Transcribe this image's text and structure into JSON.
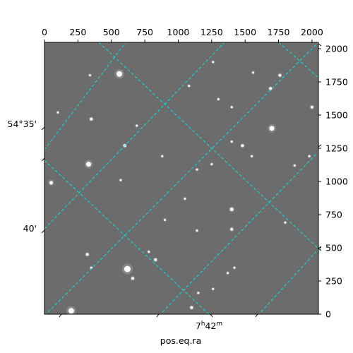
{
  "chart_data": {
    "type": "image",
    "subtype": "astronomical-image-with-wcs-grid",
    "image_colormap": "gray",
    "grid_color": "#00e5e5",
    "grid_linestyle": "dashed",
    "top_axis": {
      "ticks": [
        0,
        250,
        500,
        750,
        1000,
        1250,
        1500,
        1750,
        2000
      ],
      "tick_labels": [
        "0",
        "250",
        "500",
        "750",
        "1000",
        "1250",
        "1500",
        "1750",
        "2000"
      ],
      "xlim": [
        0,
        2048
      ]
    },
    "right_axis": {
      "ticks": [
        0,
        250,
        500,
        750,
        1000,
        1250,
        1500,
        1750,
        2000
      ],
      "tick_labels": [
        "0",
        "250",
        "500",
        "750",
        "1000",
        "1250",
        "1500",
        "1750",
        "2000"
      ],
      "ylim": [
        0,
        2048
      ]
    },
    "left_axis": {
      "tick_labels": [
        "54°35'",
        "40'"
      ]
    },
    "bottom_axis": {
      "tick_labels": [
        "7h42m"
      ],
      "label": "pos.eq.ra"
    },
    "stars": [
      {
        "x": 560,
        "y": 1810,
        "size": 4
      },
      {
        "x": 350,
        "y": 1470,
        "size": 2
      },
      {
        "x": 330,
        "y": 1130,
        "size": 3.5
      },
      {
        "x": 50,
        "y": 990,
        "size": 2.5
      },
      {
        "x": 600,
        "y": 1270,
        "size": 2
      },
      {
        "x": 690,
        "y": 1420,
        "size": 1.5
      },
      {
        "x": 570,
        "y": 1010,
        "size": 1.5
      },
      {
        "x": 1700,
        "y": 1400,
        "size": 3.5
      },
      {
        "x": 1690,
        "y": 1700,
        "size": 2
      },
      {
        "x": 1760,
        "y": 1800,
        "size": 2
      },
      {
        "x": 1480,
        "y": 1270,
        "size": 2
      },
      {
        "x": 1400,
        "y": 1300,
        "size": 1.5
      },
      {
        "x": 1400,
        "y": 1560,
        "size": 1.5
      },
      {
        "x": 1250,
        "y": 1130,
        "size": 1.5
      },
      {
        "x": 1140,
        "y": 1090,
        "size": 1.5
      },
      {
        "x": 1400,
        "y": 790,
        "size": 2.5
      },
      {
        "x": 1400,
        "y": 640,
        "size": 2
      },
      {
        "x": 1140,
        "y": 630,
        "size": 1.5
      },
      {
        "x": 1800,
        "y": 690,
        "size": 1.5
      },
      {
        "x": 1870,
        "y": 1120,
        "size": 1.5
      },
      {
        "x": 2000,
        "y": 1560,
        "size": 2
      },
      {
        "x": 620,
        "y": 340,
        "size": 4.5
      },
      {
        "x": 660,
        "y": 270,
        "size": 2
      },
      {
        "x": 320,
        "y": 450,
        "size": 2
      },
      {
        "x": 200,
        "y": 25,
        "size": 4
      },
      {
        "x": 1100,
        "y": 50,
        "size": 2
      },
      {
        "x": 1150,
        "y": 160,
        "size": 1.5
      },
      {
        "x": 1260,
        "y": 190,
        "size": 1.5
      },
      {
        "x": 1370,
        "y": 310,
        "size": 1.5
      },
      {
        "x": 1420,
        "y": 350,
        "size": 1.5
      },
      {
        "x": 830,
        "y": 410,
        "size": 2
      },
      {
        "x": 900,
        "y": 710,
        "size": 1.5
      },
      {
        "x": 1050,
        "y": 870,
        "size": 1.5
      },
      {
        "x": 1550,
        "y": 1190,
        "size": 1.5
      },
      {
        "x": 350,
        "y": 350,
        "size": 1.5
      },
      {
        "x": 780,
        "y": 470,
        "size": 1.5
      },
      {
        "x": 1300,
        "y": 1620,
        "size": 1.5
      },
      {
        "x": 340,
        "y": 1800,
        "size": 1.5
      },
      {
        "x": 1560,
        "y": 1820,
        "size": 1.5
      },
      {
        "x": 1980,
        "y": 1190,
        "size": 1.5
      },
      {
        "x": 1260,
        "y": 1900,
        "size": 1.5
      },
      {
        "x": 1080,
        "y": 1720,
        "size": 1.5
      },
      {
        "x": 880,
        "y": 1190,
        "size": 1.5
      },
      {
        "x": 100,
        "y": 1520,
        "size": 1.5
      }
    ]
  }
}
